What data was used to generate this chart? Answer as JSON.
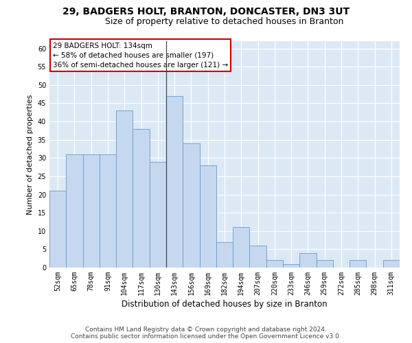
{
  "title1": "29, BADGERS HOLT, BRANTON, DONCASTER, DN3 3UT",
  "title2": "Size of property relative to detached houses in Branton",
  "xlabel": "Distribution of detached houses by size in Branton",
  "ylabel": "Number of detached properties",
  "categories": [
    "52sqm",
    "65sqm",
    "78sqm",
    "91sqm",
    "104sqm",
    "117sqm",
    "130sqm",
    "143sqm",
    "156sqm",
    "169sqm",
    "182sqm",
    "194sqm",
    "207sqm",
    "220sqm",
    "233sqm",
    "246sqm",
    "259sqm",
    "272sqm",
    "285sqm",
    "298sqm",
    "311sqm"
  ],
  "values": [
    21,
    31,
    31,
    31,
    43,
    38,
    29,
    47,
    34,
    28,
    7,
    11,
    6,
    2,
    1,
    4,
    2,
    0,
    2,
    0,
    2
  ],
  "bar_color": "#c5d8f0",
  "bar_edge_color": "#6699cc",
  "annotation_text": "29 BADGERS HOLT: 134sqm\n← 58% of detached houses are smaller (197)\n36% of semi-detached houses are larger (121) →",
  "annotation_box_color": "#ffffff",
  "annotation_box_edge": "#cc0000",
  "vline_index": 6.5,
  "ylim": [
    0,
    62
  ],
  "yticks": [
    0,
    5,
    10,
    15,
    20,
    25,
    30,
    35,
    40,
    45,
    50,
    55,
    60
  ],
  "bg_color": "#dce9f5",
  "footer_line1": "Contains HM Land Registry data © Crown copyright and database right 2024.",
  "footer_line2": "Contains public sector information licensed under the Open Government Licence v3.0.",
  "title1_fontsize": 10,
  "title2_fontsize": 9,
  "xlabel_fontsize": 8.5,
  "ylabel_fontsize": 8,
  "tick_fontsize": 7,
  "footer_fontsize": 6.5,
  "annot_fontsize": 7.5
}
